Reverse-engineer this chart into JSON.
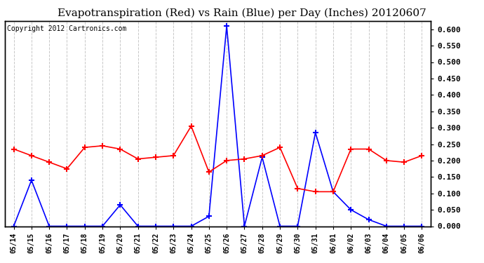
{
  "title": "Evapotranspiration (Red) vs Rain (Blue) per Day (Inches) 20120607",
  "copyright": "Copyright 2012 Cartronics.com",
  "dates": [
    "05/14",
    "05/15",
    "05/16",
    "05/17",
    "05/18",
    "05/19",
    "05/20",
    "05/21",
    "05/22",
    "05/23",
    "05/24",
    "05/25",
    "05/26",
    "05/27",
    "05/28",
    "05/29",
    "05/30",
    "05/31",
    "06/01",
    "06/02",
    "06/03",
    "06/04",
    "06/05",
    "06/06"
  ],
  "rain": [
    0.0,
    0.14,
    0.0,
    0.0,
    0.0,
    0.0,
    0.065,
    0.0,
    0.0,
    0.0,
    0.0,
    0.03,
    0.61,
    0.0,
    0.21,
    0.0,
    0.0,
    0.285,
    0.105,
    0.05,
    0.02,
    0.0,
    0.0,
    0.0
  ],
  "et": [
    0.235,
    0.215,
    0.195,
    0.175,
    0.24,
    0.245,
    0.235,
    0.205,
    0.21,
    0.215,
    0.305,
    0.165,
    0.2,
    0.205,
    0.215,
    0.24,
    0.115,
    0.105,
    0.105,
    0.235,
    0.235,
    0.2,
    0.195,
    0.215
  ],
  "ylim": [
    0.0,
    0.625
  ],
  "yticks": [
    0.0,
    0.05,
    0.1,
    0.15,
    0.2,
    0.25,
    0.3,
    0.35,
    0.4,
    0.45,
    0.5,
    0.55,
    0.6
  ],
  "rain_color": "blue",
  "et_color": "red",
  "bg_color": "white",
  "grid_color": "#c8c8c8",
  "title_fontsize": 11,
  "copyright_fontsize": 7
}
